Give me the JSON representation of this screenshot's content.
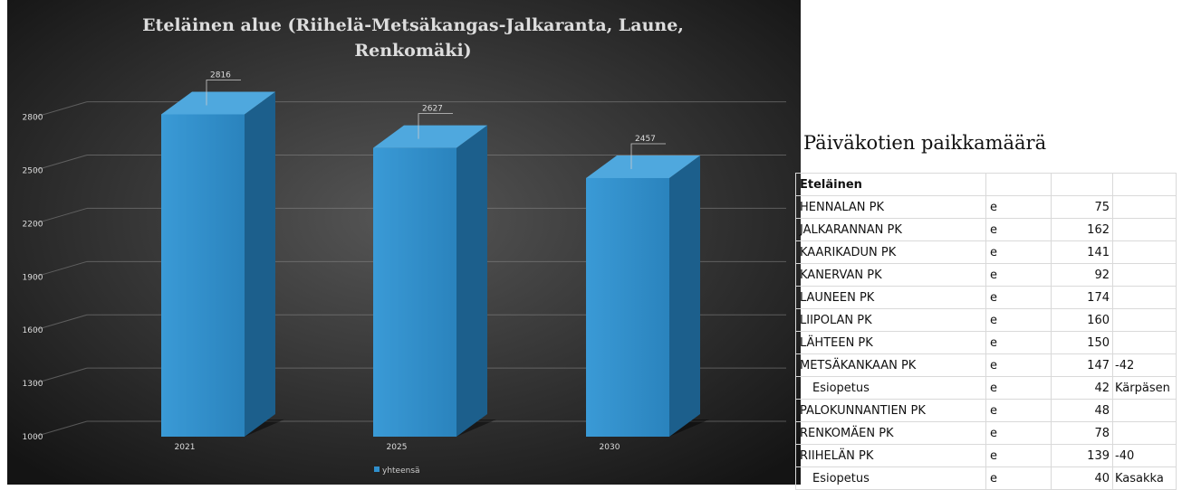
{
  "chart_data": {
    "type": "bar",
    "title": "Eteläinen alue (Riihelä-Metsäkangas-Jalkaranta, Laune, Renkomäki)",
    "categories": [
      "2021",
      "2025",
      "2030"
    ],
    "series": [
      {
        "name": "yhteensä",
        "values": [
          2816,
          2627,
          2457
        ]
      }
    ],
    "data_labels": [
      "2816",
      "2627",
      "2457"
    ],
    "y_ticks": [
      1000,
      1300,
      1600,
      1900,
      2200,
      2500,
      2800
    ],
    "ylim": [
      1000,
      2900
    ],
    "xlabel": "",
    "ylabel": "",
    "grid": true,
    "legend": "bottom",
    "colors": {
      "background_center": "#565656",
      "background_edge": "#141414",
      "bar_front": "#2f8fcc",
      "bar_top": "#4fa8de",
      "bar_side": "#1c5f8c",
      "text": "#dddddd"
    }
  },
  "table": {
    "title": "Päiväkotien paikkamäärä",
    "header": "Eteläinen",
    "rows": [
      {
        "name": "HENNALAN PK",
        "type": "e",
        "count": "75",
        "note": "",
        "indent": false
      },
      {
        "name": "JALKARANNAN PK",
        "type": "e",
        "count": "162",
        "note": "",
        "indent": false
      },
      {
        "name": "KAARIKADUN PK",
        "type": "e",
        "count": "141",
        "note": "",
        "indent": false
      },
      {
        "name": "KANERVAN PK",
        "type": "e",
        "count": "92",
        "note": "",
        "indent": false
      },
      {
        "name": "LAUNEEN PK",
        "type": "e",
        "count": "174",
        "note": "",
        "indent": false
      },
      {
        "name": "LIIPOLAN PK",
        "type": "e",
        "count": "160",
        "note": "",
        "indent": false
      },
      {
        "name": "LÄHTEEN PK",
        "type": "e",
        "count": "150",
        "note": "",
        "indent": false
      },
      {
        "name": "METSÄKANKAAN PK",
        "type": "e",
        "count": "147",
        "note": "-42",
        "indent": false
      },
      {
        "name": "Esiopetus",
        "type": "e",
        "count": "42",
        "note": "Kärpäsen",
        "indent": true
      },
      {
        "name": "PALOKUNNANTIEN PK",
        "type": "e",
        "count": "48",
        "note": "",
        "indent": false
      },
      {
        "name": "RENKOMÄEN PK",
        "type": "e",
        "count": "78",
        "note": "",
        "indent": false
      },
      {
        "name": "RIIHELÄN PK",
        "type": "e",
        "count": "139",
        "note": "-40",
        "indent": false
      },
      {
        "name": "Esiopetus",
        "type": "e",
        "count": "40",
        "note": "Kasakka",
        "indent": true
      }
    ]
  }
}
